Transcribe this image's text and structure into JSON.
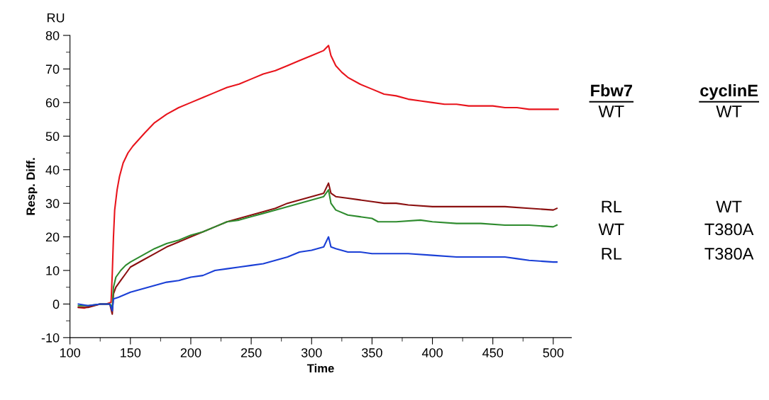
{
  "chart_data": {
    "type": "line",
    "xlabel": "Time",
    "ylabel": "Resp. Diff.",
    "xlim": [
      100,
      515
    ],
    "xticks": [
      100,
      150,
      200,
      250,
      300,
      350,
      400,
      450,
      500
    ],
    "ylim": [
      -10,
      80
    ],
    "yticks": [
      -10,
      0,
      10,
      20,
      30,
      40,
      50,
      60,
      70,
      80
    ],
    "grid": false,
    "marker": "none",
    "line_style": "solid",
    "annotations": [
      "RU",
      "Fbw7",
      "cyclinE",
      "WT",
      "WT",
      "RL",
      "WT",
      "WT",
      "T380A",
      "RL",
      "T380A"
    ],
    "series": [
      {
        "color": "#e8141c",
        "x": [
          107,
          112,
          118,
          125,
          130,
          134,
          135,
          136,
          137,
          139,
          141,
          144,
          148,
          152,
          157,
          162,
          170,
          180,
          190,
          200,
          210,
          220,
          230,
          240,
          250,
          260,
          270,
          280,
          290,
          300,
          310,
          314,
          316,
          320,
          325,
          330,
          340,
          350,
          360,
          370,
          380,
          390,
          400,
          410,
          420,
          430,
          440,
          450,
          460,
          470,
          480,
          490,
          500,
          504
        ],
        "values": [
          -1,
          -1.2,
          -0.5,
          0,
          0,
          0.5,
          9,
          20,
          28,
          34,
          38,
          42,
          45,
          47,
          49,
          51,
          54,
          56.5,
          58.5,
          60,
          61.5,
          63,
          64.5,
          65.5,
          67,
          68.5,
          69.5,
          71,
          72.5,
          74,
          75.5,
          77,
          74,
          71,
          69,
          67.5,
          65.5,
          64,
          62.5,
          62,
          61,
          60.5,
          60,
          59.5,
          59.5,
          59,
          59,
          59,
          58.5,
          58.5,
          58,
          58,
          58,
          58
        ]
      },
      {
        "color": "#8b1010",
        "x": [
          107,
          115,
          125,
          133,
          135,
          136,
          138,
          142,
          146,
          150,
          160,
          170,
          180,
          190,
          200,
          210,
          220,
          230,
          240,
          250,
          260,
          270,
          280,
          290,
          300,
          310,
          314,
          316,
          320,
          330,
          340,
          350,
          360,
          370,
          380,
          400,
          420,
          440,
          460,
          480,
          500,
          503
        ],
        "values": [
          -1,
          -1,
          0,
          0,
          -3,
          3,
          5,
          7,
          9,
          11,
          13,
          15,
          17,
          18.5,
          20,
          21.5,
          23,
          24.5,
          25.5,
          26.5,
          27.5,
          28.5,
          30,
          31,
          32,
          33,
          36,
          33,
          32,
          31.5,
          31,
          30.5,
          30,
          30,
          29.5,
          29,
          29,
          29,
          29,
          28.5,
          28,
          28.5
        ]
      },
      {
        "color": "#2e8b2e",
        "x": [
          107,
          115,
          125,
          133,
          135,
          136,
          138,
          142,
          146,
          150,
          160,
          170,
          180,
          190,
          200,
          210,
          220,
          230,
          240,
          250,
          260,
          270,
          280,
          290,
          300,
          310,
          314,
          316,
          320,
          330,
          340,
          350,
          355,
          370,
          390,
          400,
          420,
          440,
          460,
          480,
          500,
          503
        ],
        "values": [
          -0.5,
          -0.5,
          0,
          0,
          -1,
          5,
          8,
          10,
          11.5,
          12.5,
          14.5,
          16.5,
          18,
          19,
          20.5,
          21.5,
          23,
          24.5,
          25,
          26,
          27,
          28,
          29,
          30,
          31,
          32,
          34,
          30,
          28,
          26.5,
          26,
          25.5,
          24.5,
          24.5,
          25,
          24.5,
          24,
          24,
          23.5,
          23.5,
          23,
          23.5
        ]
      },
      {
        "color": "#1a3fd6",
        "x": [
          107,
          115,
          125,
          133,
          135,
          136,
          140,
          150,
          160,
          170,
          180,
          190,
          200,
          210,
          220,
          230,
          240,
          250,
          260,
          270,
          280,
          290,
          300,
          310,
          314,
          316,
          320,
          330,
          340,
          350,
          360,
          380,
          400,
          420,
          440,
          460,
          470,
          480,
          500,
          503
        ],
        "values": [
          0,
          -0.5,
          0,
          0,
          -2,
          1.5,
          2,
          3.5,
          4.5,
          5.5,
          6.5,
          7,
          8,
          8.5,
          10,
          10.5,
          11,
          11.5,
          12,
          13,
          14,
          15.5,
          16,
          17,
          20,
          17,
          16.5,
          15.5,
          15.5,
          15,
          15,
          15,
          14.5,
          14,
          14,
          14,
          13.5,
          13,
          12.5,
          12.5
        ]
      }
    ]
  }
}
